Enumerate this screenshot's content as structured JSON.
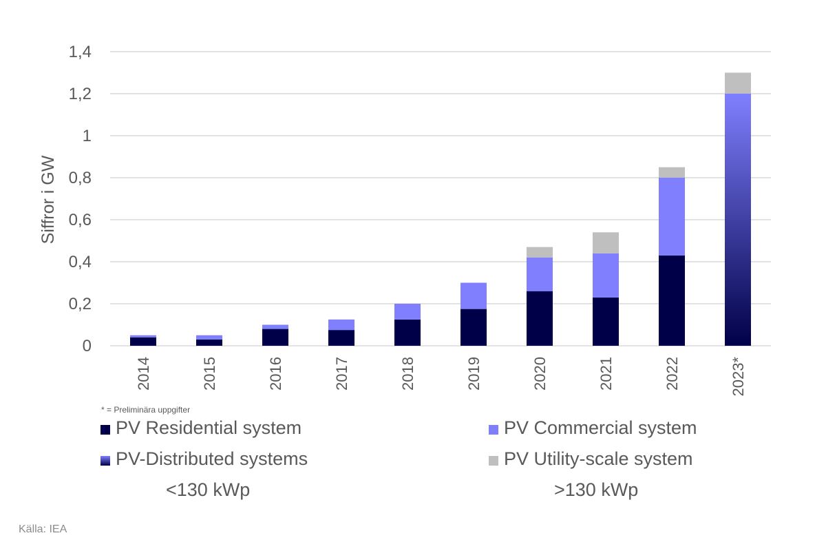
{
  "chart_data": {
    "type": "bar",
    "stacked": true,
    "ylabel": "Siffror i GW",
    "ylim": [
      0,
      1.4
    ],
    "yticks": [
      "0",
      "0,2",
      "0,4",
      "0,6",
      "0,8",
      "1",
      "1,2",
      "1,4"
    ],
    "grid": true,
    "legend_position": "bottom",
    "categories": [
      "2014",
      "2015",
      "2016",
      "2017",
      "2018",
      "2019",
      "2020",
      "2021",
      "2022",
      "2023*"
    ],
    "series": [
      {
        "name": "PV Residential system",
        "color": "#000048",
        "values": [
          0.04,
          0.03,
          0.08,
          0.075,
          0.125,
          0.175,
          0.26,
          0.23,
          0.43,
          0
        ]
      },
      {
        "name": "PV Commercial system",
        "color": "#8080ff",
        "values": [
          0.01,
          0.02,
          0.02,
          0.05,
          0.075,
          0.125,
          0.16,
          0.21,
          0.37,
          0
        ]
      },
      {
        "name": "PV-Distributed systems",
        "color": "gradient:#000048-#8080ff",
        "values": [
          0,
          0,
          0,
          0,
          0,
          0,
          0,
          0,
          0,
          1.2
        ]
      },
      {
        "name": "PV Utility-scale system",
        "color": "#bfbfbf",
        "values": [
          0,
          0,
          0,
          0,
          0,
          0,
          0.05,
          0.1,
          0.05,
          0.1
        ]
      }
    ],
    "legend_notes": [
      "<130 kWp",
      ">130 kWp"
    ],
    "footnote": "* = Preliminära uppgifter",
    "source": "Källa: IEA"
  }
}
